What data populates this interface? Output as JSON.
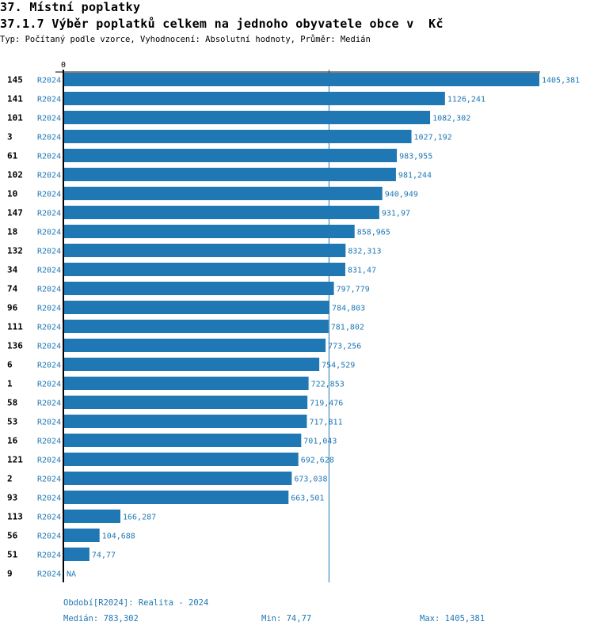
{
  "header": {
    "title": "37. Místní poplatky",
    "subtitle": "37.1.7 Výběr poplatků celkem na jednoho obyvatele obce v  Kč",
    "description": "Typ: Počítaný podle vzorce, Vyhodnocení: Absolutní hodnoty, Průměr: Medián"
  },
  "chart_data": {
    "type": "bar",
    "orientation": "horizontal",
    "x_tick_labels": [
      "0"
    ],
    "xlim": [
      0,
      1405.381
    ],
    "bar_color": "#1f77b4",
    "median_line": 783.302,
    "series_label": "R2024",
    "categories": [
      "145",
      "141",
      "101",
      "3",
      "61",
      "102",
      "10",
      "147",
      "18",
      "132",
      "34",
      "74",
      "96",
      "111",
      "136",
      "6",
      "1",
      "58",
      "53",
      "16",
      "121",
      "2",
      "93",
      "113",
      "56",
      "51",
      "9"
    ],
    "values": [
      1405.381,
      1126.241,
      1082.302,
      1027.192,
      983.955,
      981.244,
      940.949,
      931.97,
      858.965,
      832.313,
      831.47,
      797.779,
      784.803,
      781.802,
      773.256,
      754.529,
      722.853,
      719.476,
      717.811,
      701.043,
      692.628,
      673.038,
      663.501,
      166.287,
      104.688,
      74.77,
      null
    ],
    "value_labels": [
      "1405,381",
      "1126,241",
      "1082,302",
      "1027,192",
      "983,955",
      "981,244",
      "940,949",
      "931,97",
      "858,965",
      "832,313",
      "831,47",
      "797,779",
      "784,803",
      "781,802",
      "773,256",
      "754,529",
      "722,853",
      "719,476",
      "717,811",
      "701,043",
      "692,628",
      "673,038",
      "663,501",
      "166,287",
      "104,688",
      "74,77",
      "NA"
    ]
  },
  "footer": {
    "period": "Období[R2024]: Realita - 2024",
    "median": "Medián: 783,302",
    "min": "Min: 74,77",
    "max": "Max: 1405,381"
  }
}
